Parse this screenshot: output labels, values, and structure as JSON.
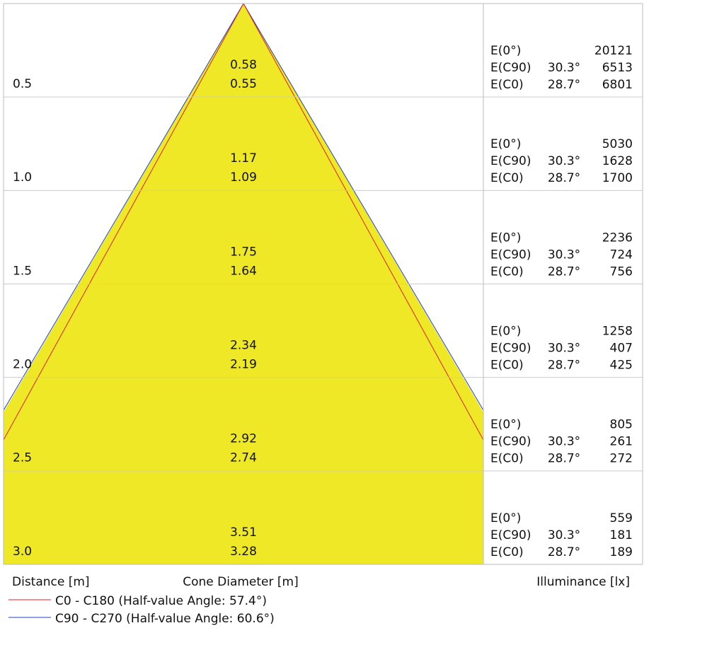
{
  "rows": [
    {
      "distance": "0.5",
      "diameter_c90": "0.58",
      "diameter_c0": "0.55",
      "e0_label": "E(0°)",
      "e0": "20121",
      "ec90_label": "E(C90)",
      "ec90_angle": "30.3°",
      "ec90": "6513",
      "ec0_label": "E(C0)",
      "ec0_angle": "28.7°",
      "ec0": "6801"
    },
    {
      "distance": "1.0",
      "diameter_c90": "1.17",
      "diameter_c0": "1.09",
      "e0_label": "E(0°)",
      "e0": "5030",
      "ec90_label": "E(C90)",
      "ec90_angle": "30.3°",
      "ec90": "1628",
      "ec0_label": "E(C0)",
      "ec0_angle": "28.7°",
      "ec0": "1700"
    },
    {
      "distance": "1.5",
      "diameter_c90": "1.75",
      "diameter_c0": "1.64",
      "e0_label": "E(0°)",
      "e0": "2236",
      "ec90_label": "E(C90)",
      "ec90_angle": "30.3°",
      "ec90": "724",
      "ec0_label": "E(C0)",
      "ec0_angle": "28.7°",
      "ec0": "756"
    },
    {
      "distance": "2.0",
      "diameter_c90": "2.34",
      "diameter_c0": "2.19",
      "e0_label": "E(0°)",
      "e0": "1258",
      "ec90_label": "E(C90)",
      "ec90_angle": "30.3°",
      "ec90": "407",
      "ec0_label": "E(C0)",
      "ec0_angle": "28.7°",
      "ec0": "425"
    },
    {
      "distance": "2.5",
      "diameter_c90": "2.92",
      "diameter_c0": "2.74",
      "e0_label": "E(0°)",
      "e0": "805",
      "ec90_label": "E(C90)",
      "ec90_angle": "30.3°",
      "ec90": "261",
      "ec0_label": "E(C0)",
      "ec0_angle": "28.7°",
      "ec0": "272"
    },
    {
      "distance": "3.0",
      "diameter_c90": "3.51",
      "diameter_c0": "3.28",
      "e0_label": "E(0°)",
      "e0": "559",
      "ec90_label": "E(C90)",
      "ec90_angle": "30.3°",
      "ec90": "181",
      "ec0_label": "E(C0)",
      "ec0_angle": "28.7°",
      "ec0": "189"
    }
  ],
  "footer": {
    "distance": "Distance [m]",
    "diameter": "Cone Diameter [m]",
    "illuminance": "Illuminance [lx]"
  },
  "legend": [
    {
      "label": "C0 - C180 (Half-value Angle: 57.4°)",
      "color": "#e02020"
    },
    {
      "label": "C90 - C270 (Half-value Angle: 60.6°)",
      "color": "#2040c0"
    }
  ]
}
